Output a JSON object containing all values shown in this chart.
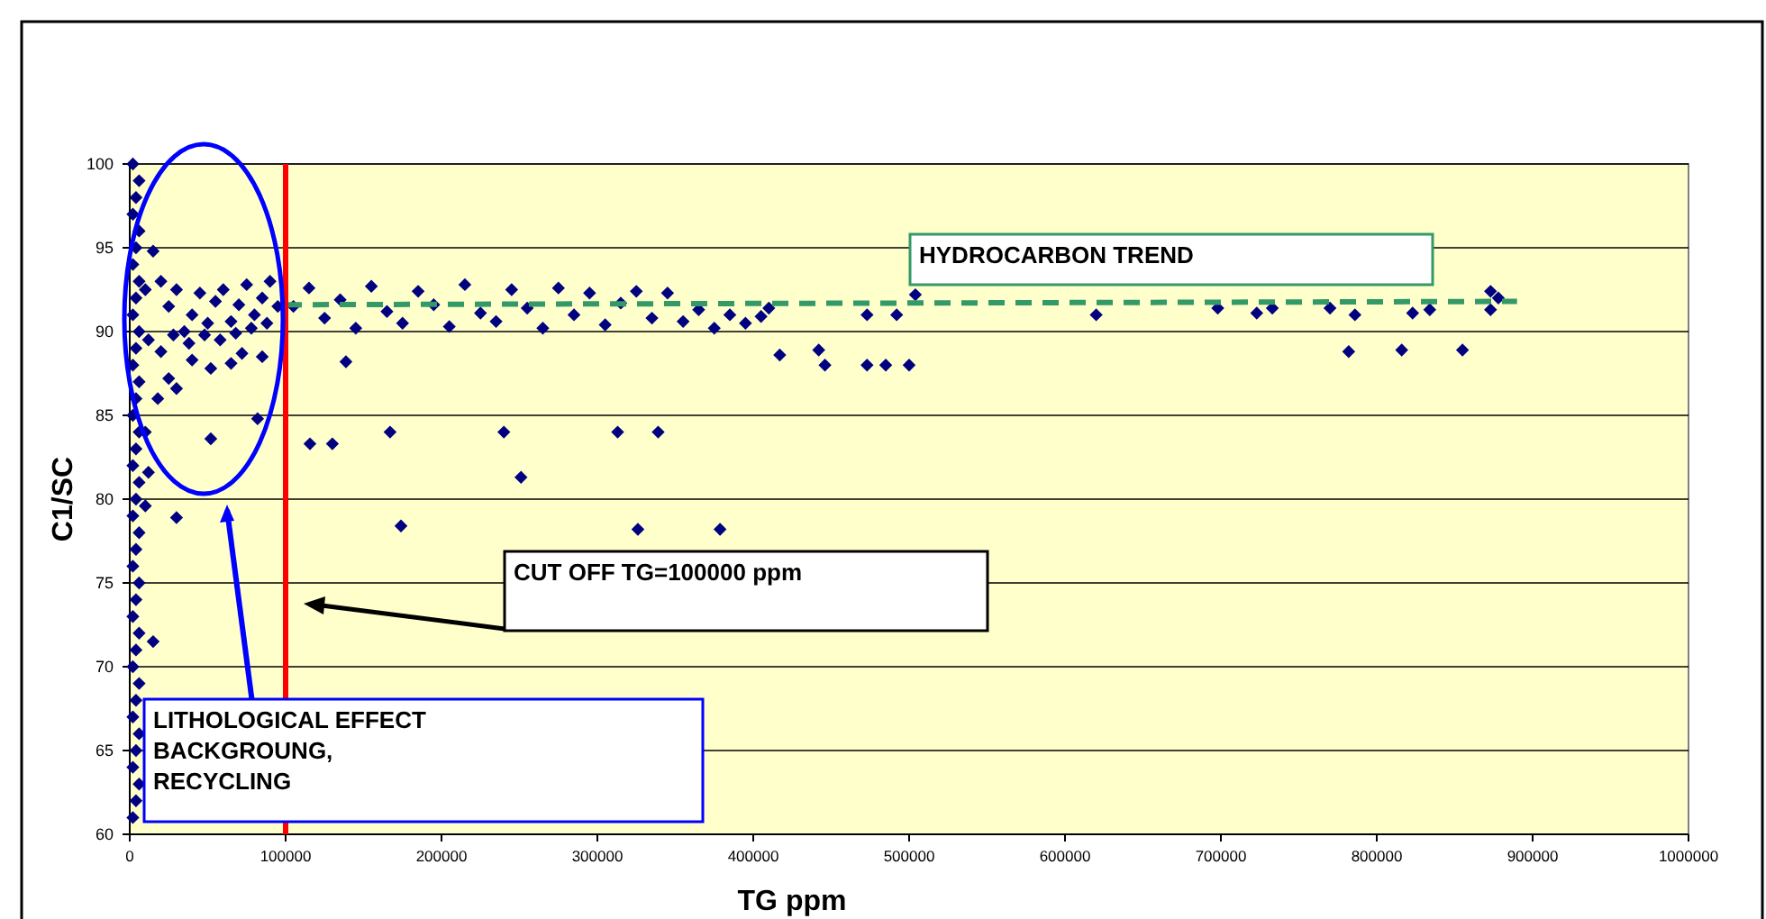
{
  "chart_data": {
    "type": "scatter",
    "xlabel": "TG ppm",
    "ylabel": "C1/SC",
    "xlim": [
      0,
      1000000
    ],
    "ylim": [
      60,
      100
    ],
    "xticks": [
      0,
      100000,
      200000,
      300000,
      400000,
      500000,
      600000,
      700000,
      800000,
      900000,
      1000000
    ],
    "yticks": [
      60,
      65,
      70,
      75,
      80,
      85,
      90,
      95,
      100
    ],
    "grid": "y",
    "marker": "diamond",
    "ref_lines": [
      {
        "axis": "x",
        "value": 100000,
        "color": "#ff0000"
      }
    ],
    "annotations": [
      "HYDROCARBON TREND",
      "CUT OFF TG=100000 ppm",
      "LITHOLOGICAL EFFECT BACKGROUNG, RECYCLING"
    ],
    "series": [
      {
        "color": "#000080",
        "x": [
          2000,
          4000,
          6000,
          2000,
          4000,
          6000,
          2000,
          4000,
          6000,
          2000,
          4000,
          6000,
          2000,
          4000,
          6000,
          2000,
          4000,
          6000,
          2000,
          4000,
          6000,
          2000,
          4000,
          6000,
          2000,
          4000,
          6000,
          2000,
          4000,
          6000,
          2000,
          4000,
          6000,
          2000,
          4000,
          6000,
          2000,
          4000,
          6000,
          2000,
          15000,
          12000,
          10000,
          30000,
          18000,
          10000,
          10000,
          15000,
          20000,
          25000,
          30000,
          35000,
          40000,
          45000,
          50000,
          55000,
          60000,
          65000,
          70000,
          75000,
          80000,
          85000,
          90000,
          95000,
          12000,
          20000,
          28000,
          38000,
          48000,
          58000,
          68000,
          78000,
          88000,
          25000,
          30000,
          40000,
          52000,
          65000,
          72000,
          85000,
          82000,
          52000,
          105000,
          115000,
          125000,
          135000,
          145000,
          155000,
          165000,
          175000,
          185000,
          195000,
          205000,
          215000,
          225000,
          235000,
          245000,
          255000,
          265000,
          275000,
          285000,
          295000,
          305000,
          315000,
          325000,
          335000,
          345000,
          355000,
          365000,
          375000,
          385000,
          395000,
          405000,
          410000,
          115600,
          130000,
          138700,
          167000,
          174000,
          240000,
          251000,
          313000,
          339000,
          326000,
          378700,
          417000,
          442000,
          446000,
          473000,
          485000,
          500000,
          473000,
          492000,
          504000,
          620000,
          698000,
          723000,
          733000,
          770000,
          786000,
          782000,
          816000,
          823000,
          834000,
          855000,
          873000,
          873000,
          878000
        ],
        "values": [
          61,
          62,
          63,
          64,
          65,
          66,
          67,
          68,
          69,
          70,
          71,
          72,
          73,
          74,
          75,
          76,
          77,
          78,
          79,
          80,
          81,
          82,
          83,
          84,
          85,
          86,
          87,
          88,
          89,
          90,
          91,
          92,
          93,
          94,
          95,
          96,
          97,
          98,
          99,
          100,
          71.5,
          81.6,
          79.6,
          78.9,
          86,
          84,
          92.5,
          94.8,
          93,
          91.5,
          92.5,
          90,
          91,
          92.3,
          90.5,
          91.8,
          92.5,
          90.6,
          91.6,
          92.8,
          91,
          92,
          93,
          91.5,
          89.5,
          88.8,
          89.8,
          89.3,
          89.8,
          89.5,
          89.9,
          90.2,
          90.5,
          87.2,
          86.6,
          88.3,
          87.8,
          88.1,
          88.7,
          88.5,
          84.8,
          83.6,
          91.5,
          92.6,
          90.8,
          91.9,
          90.2,
          92.7,
          91.2,
          90.5,
          92.4,
          91.6,
          90.3,
          92.8,
          91.1,
          90.6,
          92.5,
          91.4,
          90.2,
          92.6,
          91,
          92.3,
          90.4,
          91.7,
          92.4,
          90.8,
          92.3,
          90.6,
          91.3,
          90.2,
          91,
          90.5,
          90.9,
          91.4,
          83.3,
          83.3,
          88.2,
          84,
          78.4,
          84,
          81.3,
          84,
          84,
          78.2,
          78.2,
          88.6,
          88.9,
          88,
          88,
          88,
          88,
          91,
          91,
          92.2,
          91,
          91.4,
          91.1,
          91.4,
          91.4,
          91,
          88.8,
          88.9,
          91.1,
          91.3,
          88.9,
          92.4,
          91.3,
          92
        ]
      },
      {
        "type": "line",
        "color": "#339966",
        "line_style": "dashed",
        "marker": "none",
        "x": [
          100000,
          890000
        ],
        "values": [
          91.6,
          91.8
        ]
      }
    ]
  }
}
